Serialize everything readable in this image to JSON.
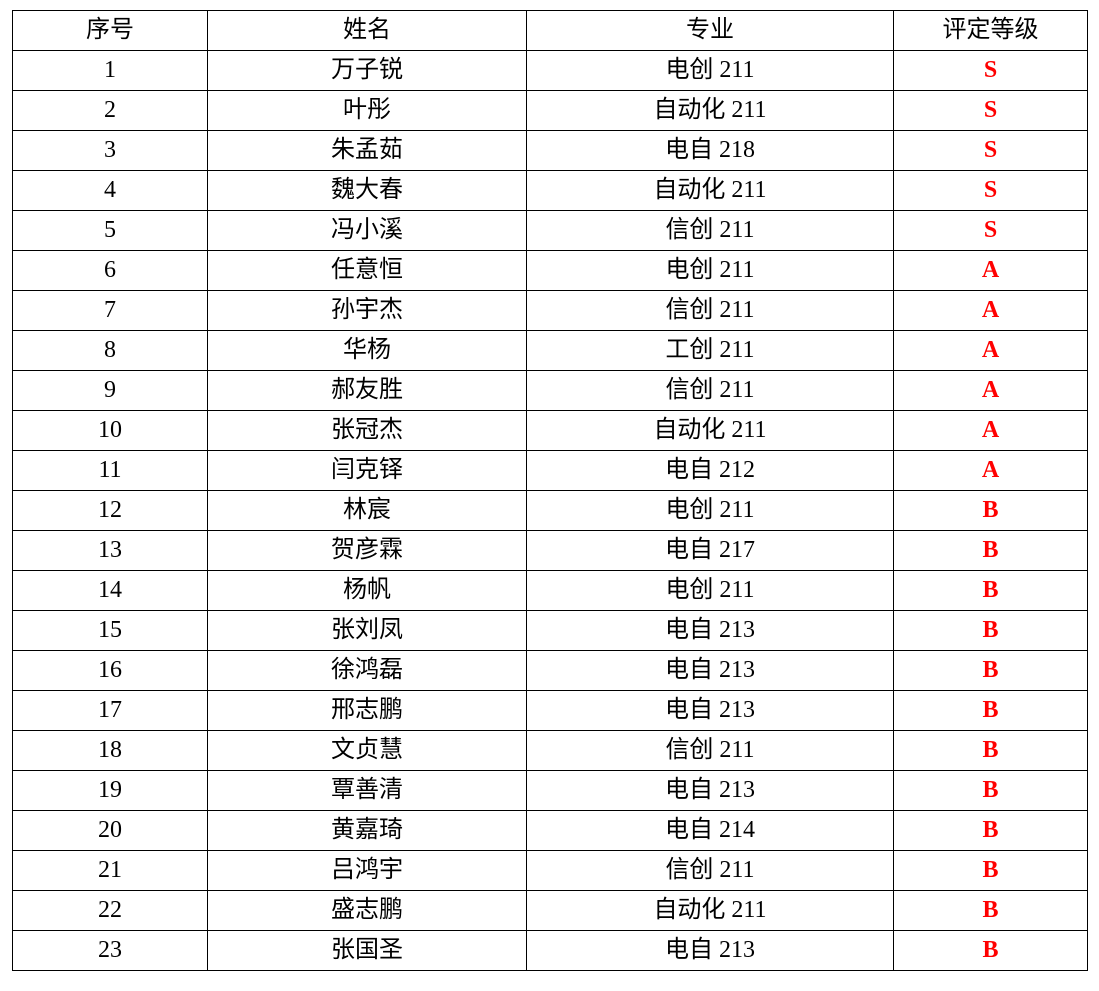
{
  "table": {
    "headers": [
      "序号",
      "姓名",
      "专业",
      "评定等级"
    ],
    "rows": [
      [
        "1",
        "万子锐",
        "电创 211",
        "S"
      ],
      [
        "2",
        "叶彤",
        "自动化 211",
        "S"
      ],
      [
        "3",
        "朱孟茹",
        "电自 218",
        "S"
      ],
      [
        "4",
        "魏大春",
        "自动化 211",
        "S"
      ],
      [
        "5",
        "冯小溪",
        "信创 211",
        "S"
      ],
      [
        "6",
        "任意恒",
        "电创 211",
        "A"
      ],
      [
        "7",
        "孙宇杰",
        "信创 211",
        "A"
      ],
      [
        "8",
        "华杨",
        "工创 211",
        "A"
      ],
      [
        "9",
        "郝友胜",
        "信创 211",
        "A"
      ],
      [
        "10",
        "张冠杰",
        "自动化 211",
        "A"
      ],
      [
        "11",
        "闫克铎",
        "电自 212",
        "A"
      ],
      [
        "12",
        "林宸",
        "电创 211",
        "B"
      ],
      [
        "13",
        "贺彦霖",
        "电自 217",
        "B"
      ],
      [
        "14",
        "杨帆",
        "电创 211",
        "B"
      ],
      [
        "15",
        "张刘凤",
        "电自 213",
        "B"
      ],
      [
        "16",
        "徐鸿磊",
        "电自 213",
        "B"
      ],
      [
        "17",
        "邢志鹏",
        "电自 213",
        "B"
      ],
      [
        "18",
        "文贞慧",
        "信创 211",
        "B"
      ],
      [
        "19",
        "覃善清",
        "电自 213",
        "B"
      ],
      [
        "20",
        "黄嘉琦",
        "电自 214",
        "B"
      ],
      [
        "21",
        "吕鸿宇",
        "信创 211",
        "B"
      ],
      [
        "22",
        "盛志鹏",
        "自动化 211",
        "B"
      ],
      [
        "23",
        "张国圣",
        "电自 213",
        "B"
      ]
    ]
  },
  "colors": {
    "grade": "#ff0000"
  }
}
